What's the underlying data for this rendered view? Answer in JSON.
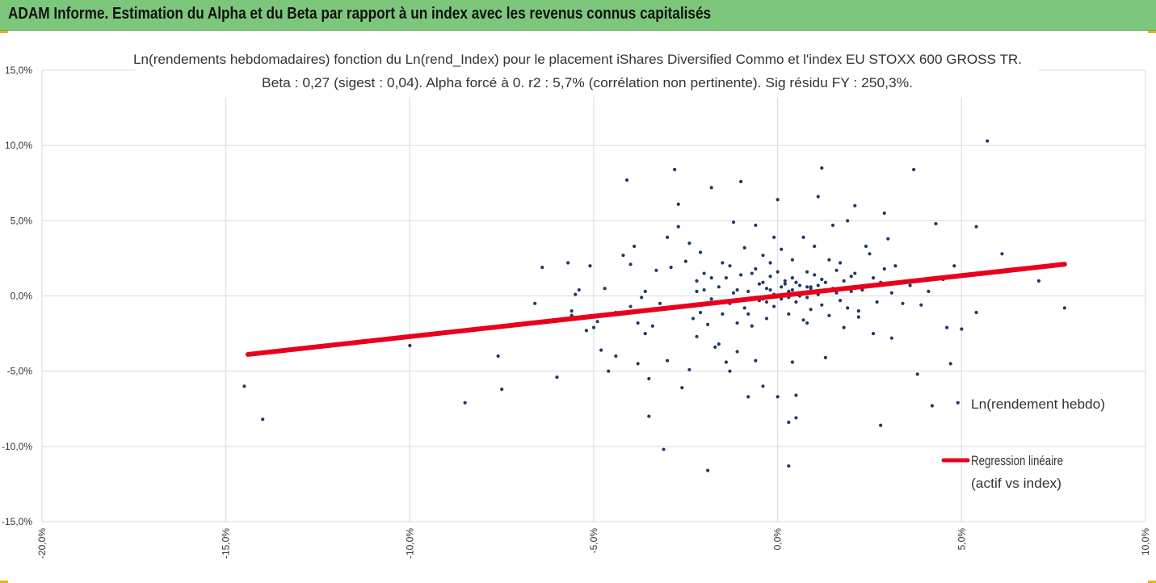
{
  "banner": {
    "title": "ADAM Informe. Estimation du Alpha et du Beta par rapport à un index avec les revenus connus capitalisés"
  },
  "colors": {
    "banner": "#7dc77c",
    "points": "#1f3864",
    "regression": "#e8001c",
    "grid": "#d9d9d9",
    "corner_marks": "#e8b21c"
  },
  "chart_data": {
    "type": "scatter",
    "title": "Ln(rendements hebdomadaires) fonction du Ln(rend_Index) pour le placement iShares Diversified Commo et l'index EU STOXX 600 GROSS TR.",
    "subtitle": "Beta : 0,27 (sigest : 0,04).  Alpha forcé à 0. r2 : 5,7% (corrélation non pertinente). Sig résidu FY : 250,3%.",
    "xlabel": "",
    "ylabel": "",
    "xlim": [
      -0.2,
      0.1
    ],
    "ylim": [
      -0.15,
      0.15
    ],
    "x_ticks": [
      -0.2,
      -0.15,
      -0.1,
      -0.05,
      0.0,
      0.05,
      0.1
    ],
    "y_ticks": [
      -0.15,
      -0.1,
      -0.05,
      0.0,
      0.05,
      0.1,
      0.15
    ],
    "x_tick_labels": [
      "-20,0%",
      "-15,0%",
      "-10,0%",
      "-5,0%",
      "0,0%",
      "5,0%",
      "10,0%"
    ],
    "y_tick_labels": [
      "-15,0%",
      "-10,0%",
      "-5,0%",
      "0,0%",
      "5,0%",
      "10,0%",
      "15,0%"
    ],
    "grid": true,
    "legend_position": "right",
    "series": [
      {
        "name": "Ln(rendement hebdo)",
        "kind": "points",
        "points": [
          [
            -0.145,
            -0.06
          ],
          [
            -0.14,
            -0.082
          ],
          [
            -0.1,
            -0.027
          ],
          [
            -0.1,
            -0.033
          ],
          [
            -0.085,
            -0.071
          ],
          [
            -0.084,
            -0.023
          ],
          [
            -0.076,
            -0.04
          ],
          [
            -0.075,
            -0.062
          ],
          [
            -0.066,
            -0.005
          ],
          [
            -0.064,
            0.019
          ],
          [
            -0.064,
            -0.017
          ],
          [
            -0.06,
            -0.054
          ],
          [
            -0.057,
            0.022
          ],
          [
            -0.056,
            -0.013
          ],
          [
            -0.056,
            -0.01
          ],
          [
            -0.055,
            0.001
          ],
          [
            -0.054,
            0.004
          ],
          [
            -0.052,
            -0.023
          ],
          [
            -0.051,
            0.02
          ],
          [
            -0.05,
            -0.021
          ],
          [
            -0.049,
            -0.017
          ],
          [
            -0.048,
            -0.036
          ],
          [
            -0.047,
            0.005
          ],
          [
            -0.046,
            -0.05
          ],
          [
            -0.044,
            -0.011
          ],
          [
            -0.044,
            -0.04
          ],
          [
            -0.042,
            0.027
          ],
          [
            -0.041,
            0.077
          ],
          [
            -0.04,
            -0.007
          ],
          [
            -0.04,
            0.021
          ],
          [
            -0.039,
            0.033
          ],
          [
            -0.038,
            -0.018
          ],
          [
            -0.038,
            -0.045
          ],
          [
            -0.037,
            -0.001
          ],
          [
            -0.036,
            0.003
          ],
          [
            -0.036,
            -0.025
          ],
          [
            -0.035,
            -0.055
          ],
          [
            -0.035,
            -0.08
          ],
          [
            -0.034,
            -0.02
          ],
          [
            -0.033,
            0.017
          ],
          [
            -0.032,
            -0.005
          ],
          [
            -0.031,
            -0.102
          ],
          [
            -0.03,
            0.039
          ],
          [
            -0.03,
            -0.043
          ],
          [
            -0.029,
            0.019
          ],
          [
            -0.028,
            0.084
          ],
          [
            -0.027,
            0.061
          ],
          [
            -0.027,
            0.046
          ],
          [
            -0.026,
            -0.061
          ],
          [
            -0.025,
            0.023
          ],
          [
            -0.024,
            0.035
          ],
          [
            -0.024,
            -0.049
          ],
          [
            -0.023,
            -0.015
          ],
          [
            -0.022,
            0.01
          ],
          [
            -0.022,
            -0.027
          ],
          [
            -0.021,
            0.029
          ],
          [
            -0.02,
            0.004
          ],
          [
            -0.019,
            -0.116
          ],
          [
            -0.018,
            0.072
          ],
          [
            -0.018,
            0.012
          ],
          [
            -0.017,
            -0.034
          ],
          [
            -0.016,
            -0.032
          ],
          [
            -0.015,
            0.022
          ],
          [
            -0.014,
            -0.044
          ],
          [
            -0.013,
            -0.05
          ],
          [
            -0.013,
            0.02
          ],
          [
            -0.012,
            0.049
          ],
          [
            -0.011,
            -0.037
          ],
          [
            -0.011,
            0.004
          ],
          [
            -0.01,
            0.076
          ],
          [
            -0.009,
            0.032
          ],
          [
            -0.008,
            -0.067
          ],
          [
            -0.008,
            -0.012
          ],
          [
            -0.007,
            0.015
          ],
          [
            -0.006,
            0.047
          ],
          [
            -0.006,
            -0.043
          ],
          [
            -0.005,
            0.008
          ],
          [
            -0.004,
            -0.06
          ],
          [
            -0.004,
            0.027
          ],
          [
            -0.003,
            -0.004
          ],
          [
            -0.002,
            0.022
          ],
          [
            -0.002,
            0.013
          ],
          [
            -0.001,
            0.039
          ],
          [
            0.0,
            0.064
          ],
          [
            0.0,
            -0.067
          ],
          [
            0.001,
            0.031
          ],
          [
            0.002,
            0.01
          ],
          [
            0.003,
            -0.001
          ],
          [
            0.003,
            -0.113
          ],
          [
            0.003,
            -0.084
          ],
          [
            0.004,
            -0.044
          ],
          [
            0.004,
            0.024
          ],
          [
            0.005,
            -0.081
          ],
          [
            0.005,
            -0.066
          ],
          [
            0.006,
            0.007
          ],
          [
            0.007,
            0.039
          ],
          [
            0.008,
            -0.018
          ],
          [
            0.008,
            0.016
          ],
          [
            0.009,
            0.006
          ],
          [
            0.01,
            0.033
          ],
          [
            0.011,
            0.066
          ],
          [
            0.012,
            0.085
          ],
          [
            0.012,
            0.011
          ],
          [
            0.013,
            -0.041
          ],
          [
            0.014,
            0.024
          ],
          [
            0.015,
            0.047
          ],
          [
            0.016,
            0.002
          ],
          [
            0.017,
            0.022
          ],
          [
            0.018,
            -0.021
          ],
          [
            0.019,
            0.05
          ],
          [
            0.02,
            0.013
          ],
          [
            0.021,
            0.06
          ],
          [
            0.022,
            -0.01
          ],
          [
            0.023,
            0.004
          ],
          [
            0.024,
            0.033
          ],
          [
            0.025,
            0.028
          ],
          [
            0.026,
            -0.025
          ],
          [
            0.028,
            0.009
          ],
          [
            0.028,
            -0.086
          ],
          [
            0.029,
            0.055
          ],
          [
            0.03,
            0.038
          ],
          [
            0.031,
            -0.028
          ],
          [
            0.032,
            0.02
          ],
          [
            0.034,
            -0.005
          ],
          [
            0.036,
            0.007
          ],
          [
            0.037,
            0.084
          ],
          [
            0.038,
            -0.052
          ],
          [
            0.039,
            -0.006
          ],
          [
            0.041,
            0.003
          ],
          [
            0.042,
            -0.073
          ],
          [
            0.043,
            0.048
          ],
          [
            0.045,
            0.011
          ],
          [
            0.046,
            -0.021
          ],
          [
            0.047,
            -0.045
          ],
          [
            0.048,
            0.02
          ],
          [
            0.049,
            -0.071
          ],
          [
            0.05,
            -0.022
          ],
          [
            0.054,
            0.046
          ],
          [
            0.054,
            -0.011
          ],
          [
            0.057,
            0.103
          ],
          [
            0.061,
            0.028
          ],
          [
            0.071,
            0.01
          ],
          [
            0.078,
            -0.008
          ],
          [
            -0.018,
            -0.002
          ],
          [
            -0.016,
            0.006
          ],
          [
            -0.015,
            -0.012
          ],
          [
            -0.014,
            0.012
          ],
          [
            -0.013,
            -0.005
          ],
          [
            -0.012,
            0.002
          ],
          [
            -0.011,
            -0.018
          ],
          [
            -0.01,
            0.014
          ],
          [
            -0.009,
            -0.008
          ],
          [
            -0.008,
            0.003
          ],
          [
            -0.007,
            -0.02
          ],
          [
            -0.006,
            0.018
          ],
          [
            -0.005,
            -0.003
          ],
          [
            -0.004,
            0.009
          ],
          [
            -0.003,
            -0.015
          ],
          [
            -0.002,
            0.004
          ],
          [
            -0.001,
            -0.007
          ],
          [
            0.0,
            0.016
          ],
          [
            0.001,
            -0.002
          ],
          [
            0.002,
            0.008
          ],
          [
            0.003,
            -0.012
          ],
          [
            0.004,
            0.012
          ],
          [
            0.005,
            -0.004
          ],
          [
            0.006,
            0.002
          ],
          [
            0.007,
            -0.016
          ],
          [
            0.008,
            0.006
          ],
          [
            0.009,
            -0.009
          ],
          [
            0.01,
            0.014
          ],
          [
            0.011,
            0.001
          ],
          [
            0.012,
            -0.006
          ],
          [
            0.013,
            0.009
          ],
          [
            0.014,
            -0.013
          ],
          [
            0.015,
            0.005
          ],
          [
            0.016,
            0.017
          ],
          [
            0.017,
            -0.003
          ],
          [
            0.018,
            0.01
          ],
          [
            0.019,
            -0.008
          ],
          [
            0.02,
            0.003
          ],
          [
            0.021,
            0.015
          ],
          [
            0.022,
            -0.014
          ],
          [
            0.024,
            0.007
          ],
          [
            0.026,
            0.012
          ],
          [
            0.027,
            -0.004
          ],
          [
            0.029,
            0.018
          ],
          [
            0.031,
            0.002
          ],
          [
            -0.024,
            -0.006
          ],
          [
            -0.022,
            0.003
          ],
          [
            -0.021,
            -0.011
          ],
          [
            -0.02,
            0.015
          ],
          [
            -0.019,
            -0.019
          ],
          [
            0.002,
            0.001
          ],
          [
            0.004,
            0.004
          ],
          [
            0.006,
            0.0
          ],
          [
            0.008,
            -0.001
          ],
          [
            0.01,
            0.003
          ],
          [
            -0.001,
            0.001
          ],
          [
            -0.003,
            0.005
          ],
          [
            0.001,
            0.006
          ],
          [
            0.003,
            0.003
          ],
          [
            0.005,
            0.009
          ],
          [
            -0.006,
            -0.001
          ],
          [
            -0.004,
            -0.002
          ],
          [
            0.007,
            0.002
          ],
          [
            0.009,
            0.005
          ],
          [
            0.011,
            0.007
          ]
        ]
      },
      {
        "name": "Regression linéaire (actif vs index)",
        "name_lines": [
          "Regression linéaire",
          "(actif vs index)"
        ],
        "kind": "line",
        "beta": 0.27,
        "x_range": [
          -0.144,
          0.078
        ]
      }
    ]
  }
}
